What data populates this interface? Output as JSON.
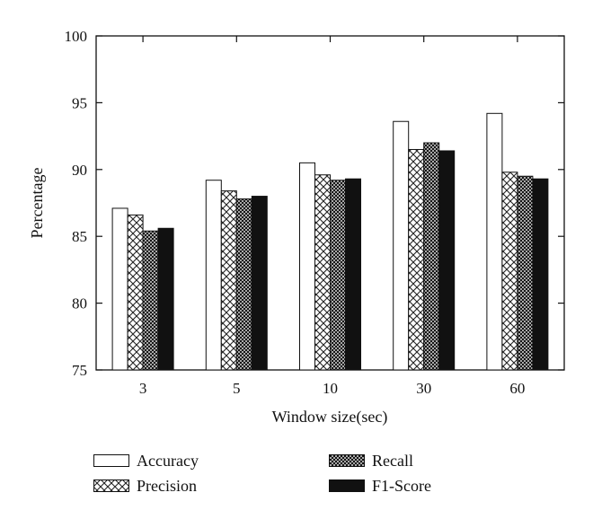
{
  "chart_data": {
    "type": "bar",
    "xlabel": "Window size(sec)",
    "ylabel": "Percentage",
    "categories": [
      "3",
      "5",
      "10",
      "30",
      "60"
    ],
    "ylim": [
      75,
      100
    ],
    "yticks": [
      75,
      80,
      85,
      90,
      95,
      100
    ],
    "grid": false,
    "legend_position": "bottom",
    "series": [
      {
        "name": "Accuracy",
        "fill": "white",
        "values": [
          87.1,
          89.2,
          90.5,
          93.6,
          94.2
        ]
      },
      {
        "name": "Precision",
        "fill": "crosshatch",
        "values": [
          86.6,
          88.4,
          89.6,
          91.5,
          89.8
        ]
      },
      {
        "name": "Recall",
        "fill": "dense-hatch",
        "values": [
          85.4,
          87.8,
          89.2,
          92.0,
          89.5
        ]
      },
      {
        "name": "F1-Score",
        "fill": "black",
        "values": [
          85.6,
          88.0,
          89.3,
          91.4,
          89.3
        ]
      }
    ]
  }
}
